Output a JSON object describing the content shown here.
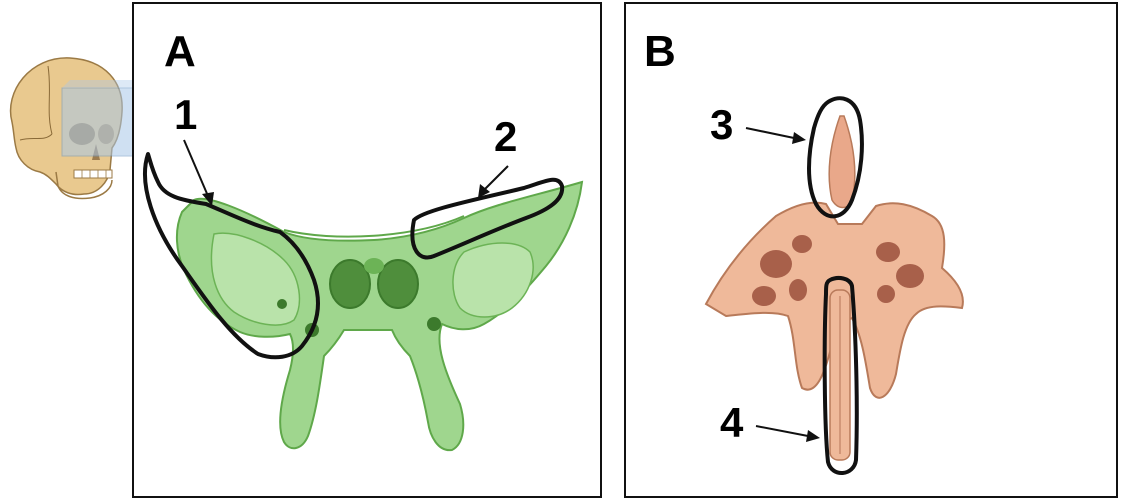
{
  "colors": {
    "sphenoid_fill": "#9fd68e",
    "sphenoid_shade": "#5fa84a",
    "ethmoid_fill": "#efb99a",
    "ethmoid_shade": "#b87a5a",
    "outline": "#111111",
    "skull_bone": "#e9c98f",
    "plane_highlight": "#a9c8e8"
  },
  "panels": [
    {
      "letter": "A",
      "bone_icon": "sphenoid-bone-icon"
    },
    {
      "letter": "B",
      "bone_icon": "ethmoid-bone-icon"
    }
  ],
  "labels": {
    "n1": "1",
    "n2": "2",
    "n3": "3",
    "n4": "4"
  },
  "thumbnail_icon": "skull-coronal-plane-icon"
}
